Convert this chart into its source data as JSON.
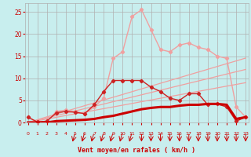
{
  "background_color": "#c8eeee",
  "grid_color": "#b0b0b0",
  "xlabel": "Vent moyen/en rafales ( km/h )",
  "xlabel_color": "#cc0000",
  "tick_color": "#cc0000",
  "x": [
    0,
    1,
    2,
    3,
    4,
    5,
    6,
    7,
    8,
    9,
    10,
    11,
    12,
    13,
    14,
    15,
    16,
    17,
    18,
    19,
    20,
    21,
    22,
    23
  ],
  "line_diag_fast": [
    0.0,
    0.63,
    1.27,
    1.9,
    2.53,
    3.17,
    3.8,
    4.43,
    5.07,
    5.7,
    6.33,
    6.97,
    7.6,
    8.23,
    8.87,
    9.5,
    10.13,
    10.77,
    11.4,
    12.03,
    12.67,
    13.3,
    13.93,
    14.57
  ],
  "line_diag_med": [
    0.0,
    0.52,
    1.04,
    1.57,
    2.09,
    2.61,
    3.13,
    3.65,
    4.17,
    4.7,
    5.22,
    5.74,
    6.26,
    6.78,
    7.3,
    7.83,
    8.35,
    8.87,
    9.39,
    9.91,
    10.43,
    10.96,
    11.48,
    12.0
  ],
  "line_diag_slow": [
    0.0,
    0.39,
    0.78,
    1.17,
    1.57,
    1.96,
    2.35,
    2.74,
    3.13,
    3.52,
    3.91,
    4.3,
    4.7,
    5.09,
    5.48,
    5.87,
    6.26,
    6.65,
    7.04,
    7.43,
    7.83,
    8.22,
    8.61,
    9.0
  ],
  "line_rafale_light": [
    1.2,
    0.1,
    0.3,
    2.2,
    2.5,
    2.3,
    2.0,
    4.0,
    7.0,
    9.5,
    9.5,
    9.5,
    9.5,
    8.0,
    7.0,
    5.5,
    5.0,
    6.5,
    6.5,
    4.0,
    4.2,
    3.5,
    0.3,
    1.2
  ],
  "line_rafale_dark": [
    1.2,
    0.1,
    0.2,
    2.5,
    2.8,
    2.5,
    2.0,
    3.5,
    5.5,
    14.5,
    16.0,
    24.0,
    25.5,
    21.0,
    16.5,
    16.0,
    17.5,
    18.0,
    17.0,
    16.5,
    15.0,
    14.5,
    3.5,
    1.2
  ],
  "line_moyen_solid": [
    0.0,
    0.0,
    0.0,
    0.3,
    0.4,
    0.5,
    0.6,
    0.8,
    1.2,
    1.5,
    2.0,
    2.5,
    3.0,
    3.3,
    3.5,
    3.5,
    3.8,
    4.0,
    4.0,
    4.2,
    4.2,
    4.0,
    0.8,
    1.2
  ],
  "ylim": [
    0,
    27
  ],
  "yticks": [
    0,
    5,
    10,
    15,
    20,
    25
  ],
  "xlim": [
    -0.3,
    23.3
  ],
  "arrows_angled": [
    5,
    6,
    7,
    8,
    9,
    10,
    11
  ],
  "arrows_straight": [
    12,
    13,
    14,
    15,
    16,
    17,
    18,
    19,
    20,
    21,
    22,
    23
  ]
}
